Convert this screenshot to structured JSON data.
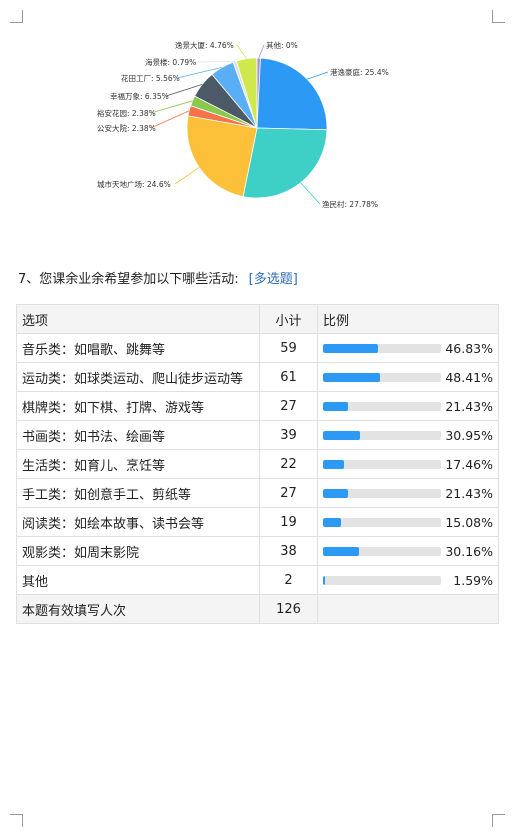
{
  "pie_chart": {
    "slices": [
      {
        "label": "港逸豪庭: 25.4%",
        "value": 25.4,
        "color": "#2c99f5"
      },
      {
        "label": "渔民村: 27.78%",
        "value": 27.78,
        "color": "#3ecfc7"
      },
      {
        "label": "城市天地广场: 24.6%",
        "value": 24.6,
        "color": "#fdc139"
      },
      {
        "label": "公安大院: 2.38%",
        "value": 2.38,
        "color": "#f5724b"
      },
      {
        "label": "裕安花园: 2.38%",
        "value": 2.38,
        "color": "#8ac94e"
      },
      {
        "label": "幸福万象: 6.35%",
        "value": 6.35,
        "color": "#4b5a66"
      },
      {
        "label": "花田工厂: 5.56%",
        "value": 5.56,
        "color": "#5aaef5"
      },
      {
        "label": "海景楼: 0.79%",
        "value": 0.79,
        "color": "#dbe0ea"
      },
      {
        "label": "逸景大厦: 4.76%",
        "value": 4.76,
        "color": "#cfe84d"
      },
      {
        "label": "其他: 0%",
        "value": 0,
        "color": "#a98ee6"
      }
    ]
  },
  "question": {
    "title": "7、您课余业余希望参加以下哪些活动:",
    "type_label": "[多选题]"
  },
  "table": {
    "headers": [
      "选项",
      "小计",
      "比例"
    ],
    "rows": [
      {
        "option": "音乐类：如唱歌、跳舞等",
        "count": "59",
        "percent": "46.83%",
        "fraction": 0.4683
      },
      {
        "option": "运动类：如球类运动、爬山徒步运动等",
        "count": "61",
        "percent": "48.41%",
        "fraction": 0.4841
      },
      {
        "option": "棋牌类：如下棋、打牌、游戏等",
        "count": "27",
        "percent": "21.43%",
        "fraction": 0.2143
      },
      {
        "option": "书画类：如书法、绘画等",
        "count": "39",
        "percent": "30.95%",
        "fraction": 0.3095
      },
      {
        "option": "生活类：如育儿、烹饪等",
        "count": "22",
        "percent": "17.46%",
        "fraction": 0.1746
      },
      {
        "option": "手工类：如创意手工、剪纸等",
        "count": "27",
        "percent": "21.43%",
        "fraction": 0.2143
      },
      {
        "option": "阅读类：如绘本故事、读书会等",
        "count": "19",
        "percent": "15.08%",
        "fraction": 0.1508
      },
      {
        "option": "观影类：如周末影院",
        "count": "38",
        "percent": "30.16%",
        "fraction": 0.3016
      },
      {
        "option": "其他",
        "count": "2",
        "percent": "1.59%",
        "fraction": 0.0159
      }
    ],
    "total": {
      "label": "本题有效填写人次",
      "count": "126"
    }
  }
}
